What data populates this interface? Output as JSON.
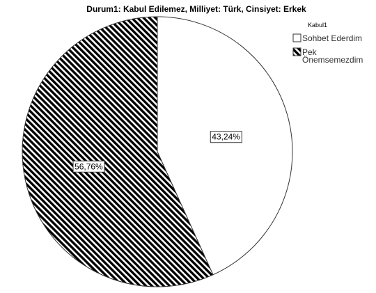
{
  "chart_data": {
    "type": "pie",
    "title": "Durum1: Kabul Edilemez, Milliyet: Türk, Cinsiyet: Erkek",
    "legend": {
      "title": "Kabul1",
      "placement": "top-right"
    },
    "slices": [
      {
        "name": "Sohbet Ederdim",
        "value": 43.24,
        "label": "43,24%",
        "fill": "#ffffff",
        "pattern": "none"
      },
      {
        "name": "Pek Önemsemezdim",
        "name_lines": [
          "Pek",
          "Önemsemezdim"
        ],
        "value": 56.76,
        "label": "56,76%",
        "fill": "#000000",
        "pattern": "diagonal-hatch"
      }
    ],
    "start_angle": "12 o'clock",
    "direction": "clockwise"
  }
}
